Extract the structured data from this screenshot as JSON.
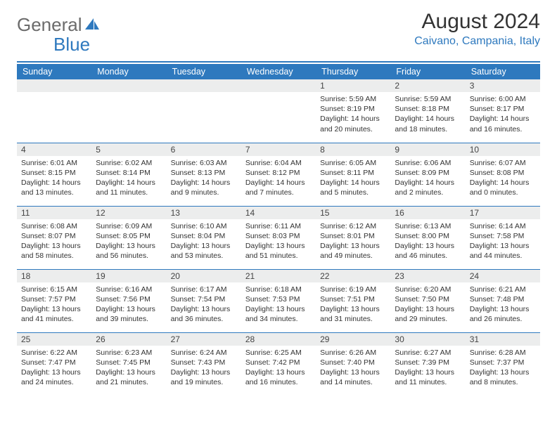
{
  "colors": {
    "accent": "#2e79be",
    "headerText": "#ffffff",
    "daynumBg": "#eceded",
    "bodyText": "#333333",
    "logoGray": "#6b6b6b"
  },
  "logo": {
    "textGray": "General",
    "textBlue": "Blue"
  },
  "title": "August 2024",
  "location": "Caivano, Campania, Italy",
  "weekdays": [
    "Sunday",
    "Monday",
    "Tuesday",
    "Wednesday",
    "Thursday",
    "Friday",
    "Saturday"
  ],
  "weeks": [
    [
      {
        "day": "",
        "sunrise": "",
        "sunset": "",
        "daylight1": "",
        "daylight2": ""
      },
      {
        "day": "",
        "sunrise": "",
        "sunset": "",
        "daylight1": "",
        "daylight2": ""
      },
      {
        "day": "",
        "sunrise": "",
        "sunset": "",
        "daylight1": "",
        "daylight2": ""
      },
      {
        "day": "",
        "sunrise": "",
        "sunset": "",
        "daylight1": "",
        "daylight2": ""
      },
      {
        "day": "1",
        "sunrise": "Sunrise: 5:59 AM",
        "sunset": "Sunset: 8:19 PM",
        "daylight1": "Daylight: 14 hours",
        "daylight2": "and 20 minutes."
      },
      {
        "day": "2",
        "sunrise": "Sunrise: 5:59 AM",
        "sunset": "Sunset: 8:18 PM",
        "daylight1": "Daylight: 14 hours",
        "daylight2": "and 18 minutes."
      },
      {
        "day": "3",
        "sunrise": "Sunrise: 6:00 AM",
        "sunset": "Sunset: 8:17 PM",
        "daylight1": "Daylight: 14 hours",
        "daylight2": "and 16 minutes."
      }
    ],
    [
      {
        "day": "4",
        "sunrise": "Sunrise: 6:01 AM",
        "sunset": "Sunset: 8:15 PM",
        "daylight1": "Daylight: 14 hours",
        "daylight2": "and 13 minutes."
      },
      {
        "day": "5",
        "sunrise": "Sunrise: 6:02 AM",
        "sunset": "Sunset: 8:14 PM",
        "daylight1": "Daylight: 14 hours",
        "daylight2": "and 11 minutes."
      },
      {
        "day": "6",
        "sunrise": "Sunrise: 6:03 AM",
        "sunset": "Sunset: 8:13 PM",
        "daylight1": "Daylight: 14 hours",
        "daylight2": "and 9 minutes."
      },
      {
        "day": "7",
        "sunrise": "Sunrise: 6:04 AM",
        "sunset": "Sunset: 8:12 PM",
        "daylight1": "Daylight: 14 hours",
        "daylight2": "and 7 minutes."
      },
      {
        "day": "8",
        "sunrise": "Sunrise: 6:05 AM",
        "sunset": "Sunset: 8:11 PM",
        "daylight1": "Daylight: 14 hours",
        "daylight2": "and 5 minutes."
      },
      {
        "day": "9",
        "sunrise": "Sunrise: 6:06 AM",
        "sunset": "Sunset: 8:09 PM",
        "daylight1": "Daylight: 14 hours",
        "daylight2": "and 2 minutes."
      },
      {
        "day": "10",
        "sunrise": "Sunrise: 6:07 AM",
        "sunset": "Sunset: 8:08 PM",
        "daylight1": "Daylight: 14 hours",
        "daylight2": "and 0 minutes."
      }
    ],
    [
      {
        "day": "11",
        "sunrise": "Sunrise: 6:08 AM",
        "sunset": "Sunset: 8:07 PM",
        "daylight1": "Daylight: 13 hours",
        "daylight2": "and 58 minutes."
      },
      {
        "day": "12",
        "sunrise": "Sunrise: 6:09 AM",
        "sunset": "Sunset: 8:05 PM",
        "daylight1": "Daylight: 13 hours",
        "daylight2": "and 56 minutes."
      },
      {
        "day": "13",
        "sunrise": "Sunrise: 6:10 AM",
        "sunset": "Sunset: 8:04 PM",
        "daylight1": "Daylight: 13 hours",
        "daylight2": "and 53 minutes."
      },
      {
        "day": "14",
        "sunrise": "Sunrise: 6:11 AM",
        "sunset": "Sunset: 8:03 PM",
        "daylight1": "Daylight: 13 hours",
        "daylight2": "and 51 minutes."
      },
      {
        "day": "15",
        "sunrise": "Sunrise: 6:12 AM",
        "sunset": "Sunset: 8:01 PM",
        "daylight1": "Daylight: 13 hours",
        "daylight2": "and 49 minutes."
      },
      {
        "day": "16",
        "sunrise": "Sunrise: 6:13 AM",
        "sunset": "Sunset: 8:00 PM",
        "daylight1": "Daylight: 13 hours",
        "daylight2": "and 46 minutes."
      },
      {
        "day": "17",
        "sunrise": "Sunrise: 6:14 AM",
        "sunset": "Sunset: 7:58 PM",
        "daylight1": "Daylight: 13 hours",
        "daylight2": "and 44 minutes."
      }
    ],
    [
      {
        "day": "18",
        "sunrise": "Sunrise: 6:15 AM",
        "sunset": "Sunset: 7:57 PM",
        "daylight1": "Daylight: 13 hours",
        "daylight2": "and 41 minutes."
      },
      {
        "day": "19",
        "sunrise": "Sunrise: 6:16 AM",
        "sunset": "Sunset: 7:56 PM",
        "daylight1": "Daylight: 13 hours",
        "daylight2": "and 39 minutes."
      },
      {
        "day": "20",
        "sunrise": "Sunrise: 6:17 AM",
        "sunset": "Sunset: 7:54 PM",
        "daylight1": "Daylight: 13 hours",
        "daylight2": "and 36 minutes."
      },
      {
        "day": "21",
        "sunrise": "Sunrise: 6:18 AM",
        "sunset": "Sunset: 7:53 PM",
        "daylight1": "Daylight: 13 hours",
        "daylight2": "and 34 minutes."
      },
      {
        "day": "22",
        "sunrise": "Sunrise: 6:19 AM",
        "sunset": "Sunset: 7:51 PM",
        "daylight1": "Daylight: 13 hours",
        "daylight2": "and 31 minutes."
      },
      {
        "day": "23",
        "sunrise": "Sunrise: 6:20 AM",
        "sunset": "Sunset: 7:50 PM",
        "daylight1": "Daylight: 13 hours",
        "daylight2": "and 29 minutes."
      },
      {
        "day": "24",
        "sunrise": "Sunrise: 6:21 AM",
        "sunset": "Sunset: 7:48 PM",
        "daylight1": "Daylight: 13 hours",
        "daylight2": "and 26 minutes."
      }
    ],
    [
      {
        "day": "25",
        "sunrise": "Sunrise: 6:22 AM",
        "sunset": "Sunset: 7:47 PM",
        "daylight1": "Daylight: 13 hours",
        "daylight2": "and 24 minutes."
      },
      {
        "day": "26",
        "sunrise": "Sunrise: 6:23 AM",
        "sunset": "Sunset: 7:45 PM",
        "daylight1": "Daylight: 13 hours",
        "daylight2": "and 21 minutes."
      },
      {
        "day": "27",
        "sunrise": "Sunrise: 6:24 AM",
        "sunset": "Sunset: 7:43 PM",
        "daylight1": "Daylight: 13 hours",
        "daylight2": "and 19 minutes."
      },
      {
        "day": "28",
        "sunrise": "Sunrise: 6:25 AM",
        "sunset": "Sunset: 7:42 PM",
        "daylight1": "Daylight: 13 hours",
        "daylight2": "and 16 minutes."
      },
      {
        "day": "29",
        "sunrise": "Sunrise: 6:26 AM",
        "sunset": "Sunset: 7:40 PM",
        "daylight1": "Daylight: 13 hours",
        "daylight2": "and 14 minutes."
      },
      {
        "day": "30",
        "sunrise": "Sunrise: 6:27 AM",
        "sunset": "Sunset: 7:39 PM",
        "daylight1": "Daylight: 13 hours",
        "daylight2": "and 11 minutes."
      },
      {
        "day": "31",
        "sunrise": "Sunrise: 6:28 AM",
        "sunset": "Sunset: 7:37 PM",
        "daylight1": "Daylight: 13 hours",
        "daylight2": "and 8 minutes."
      }
    ]
  ]
}
